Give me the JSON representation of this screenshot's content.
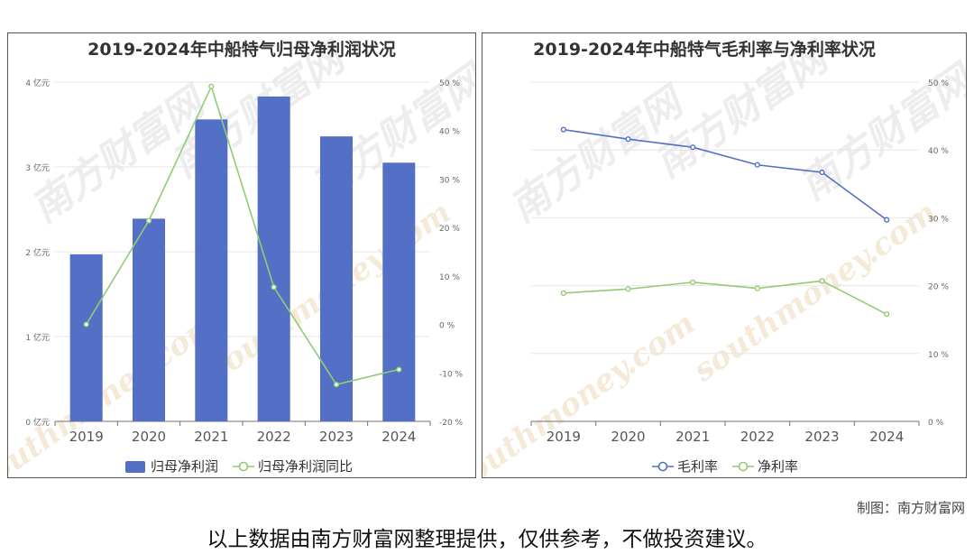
{
  "charts": {
    "profit": {
      "title": "2019-2024年中船特气归母净利润状况"
    },
    "margin": {
      "title": "2019-2024年中船特气毛利率与净利率状况"
    }
  },
  "footer": {
    "credit": "制图：南方财富网",
    "disclaimer": "以上数据由南方财富网整理提供，仅供参考，不做投资建议。"
  },
  "watermark_text": [
    "南方财富网",
    "southmoney.com"
  ],
  "chart_data": [
    {
      "type": "bar",
      "title": "2019-2024年中船特气归母净利润状况",
      "categories": [
        "2019",
        "2020",
        "2021",
        "2022",
        "2023",
        "2024"
      ],
      "y_axis": {
        "ticks": [
          "0 亿元",
          "1 亿元",
          "2 亿元",
          "3 亿元",
          "4 亿元"
        ],
        "ylim": [
          0,
          4
        ],
        "unit": "亿元"
      },
      "y2_axis": {
        "ticks": [
          "-20 %",
          "-10 %",
          "0 %",
          "10 %",
          "20 %",
          "30 %",
          "40 %",
          "50 %"
        ],
        "ylim": [
          -20,
          50
        ],
        "unit": "%"
      },
      "series": [
        {
          "name": "归母净利润",
          "type": "bar",
          "axis": "left",
          "color": "#5470c6",
          "values": [
            1.97,
            2.39,
            3.56,
            3.83,
            3.36,
            3.05
          ]
        },
        {
          "name": "归母净利润同比",
          "type": "line",
          "axis": "right",
          "color": "#91cc75",
          "values": [
            0.0,
            21.4,
            49.1,
            7.7,
            -12.4,
            -9.3
          ]
        }
      ],
      "legend": "bottom",
      "grid": true
    },
    {
      "type": "line",
      "title": "2019-2024年中船特气毛利率与净利率状况",
      "categories": [
        "2019",
        "2020",
        "2021",
        "2022",
        "2023",
        "2024"
      ],
      "y2_axis": {
        "ticks": [
          "0 %",
          "10 %",
          "20 %",
          "30 %",
          "40 %",
          "50 %"
        ],
        "ylim": [
          0,
          50
        ],
        "unit": "%"
      },
      "series": [
        {
          "name": "毛利率",
          "axis": "right",
          "color": "#5470c6",
          "values": [
            43.0,
            41.6,
            40.4,
            37.8,
            36.7,
            29.7
          ]
        },
        {
          "name": "净利率",
          "axis": "right",
          "color": "#91cc75",
          "values": [
            18.9,
            19.5,
            20.5,
            19.6,
            20.7,
            15.8
          ]
        }
      ],
      "legend": "bottom",
      "grid": true
    }
  ]
}
